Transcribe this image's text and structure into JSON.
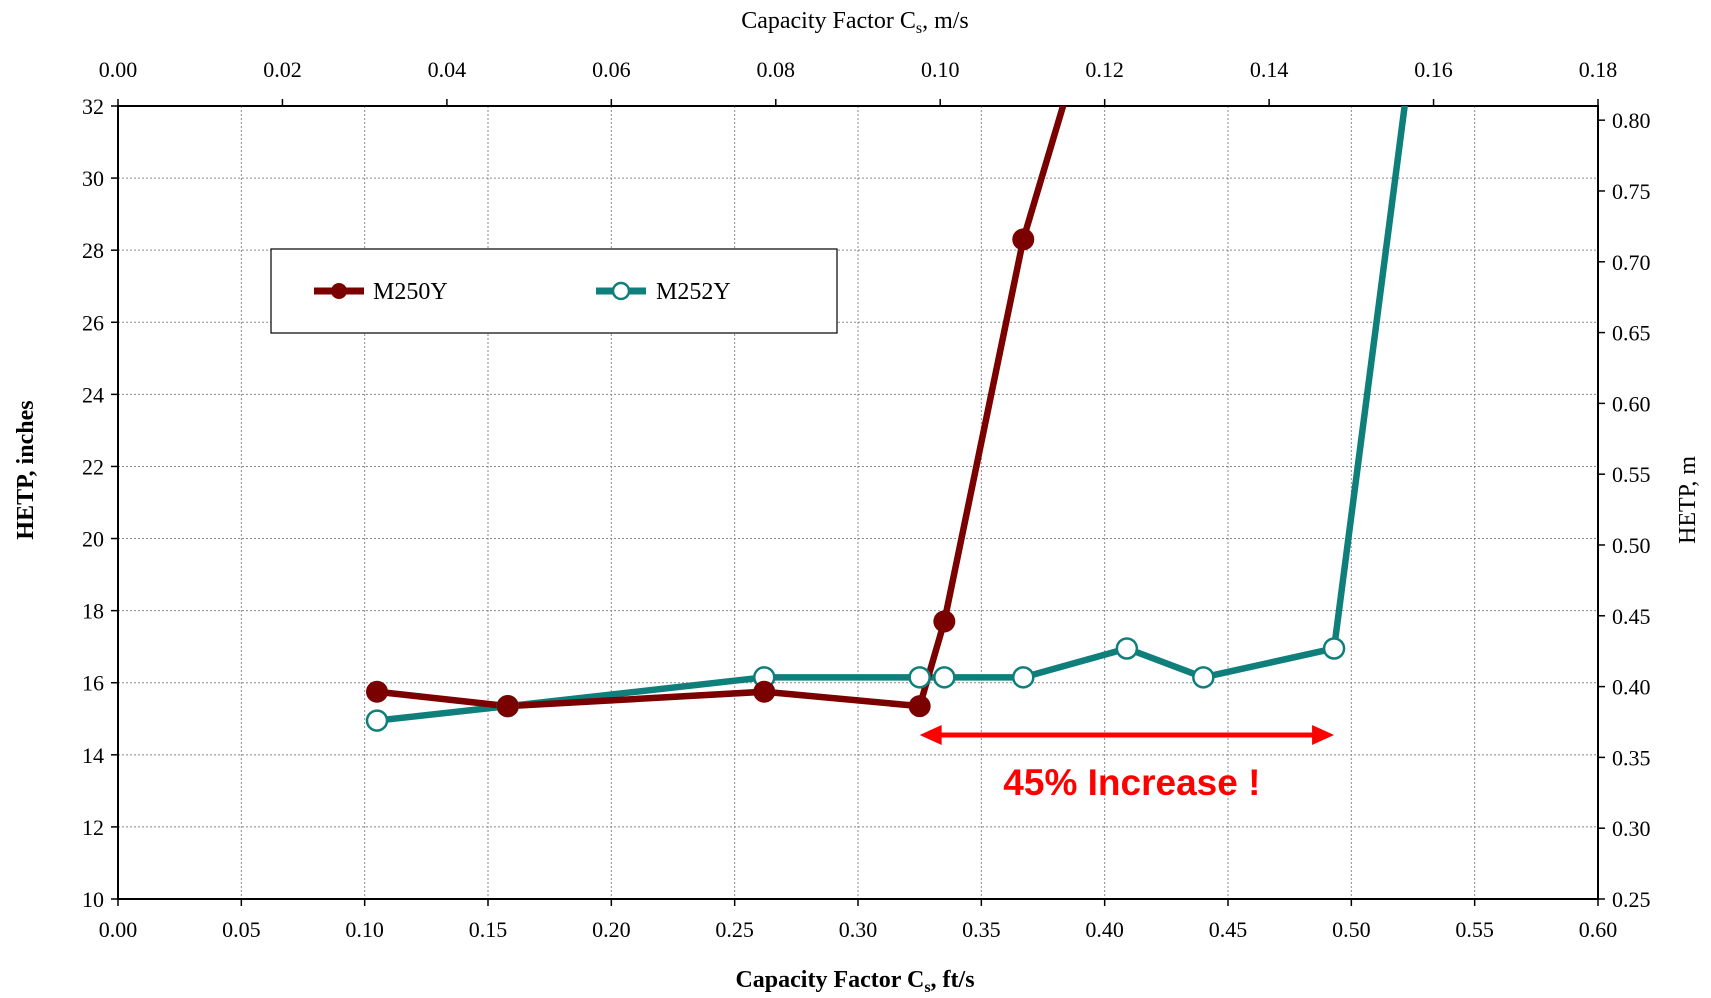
{
  "chart_data": {
    "type": "line",
    "xlabel_bottom": "Capacity Factor C",
    "xlabel_bottom_sub": "s",
    "xlabel_bottom_unit": ", ft/s",
    "xlabel_top": "Capacity Factor C",
    "xlabel_top_sub": "s",
    "xlabel_top_unit": ", m/s",
    "ylabel_left": "HETP, inches",
    "ylabel_right": "HETP, m",
    "xlim_bottom": [
      0,
      0.6
    ],
    "xlim_top": [
      0,
      0.18
    ],
    "ylim_left": [
      10,
      32
    ],
    "ylim_right": [
      0.25,
      0.81
    ],
    "x_ticks_bottom": [
      "0.00",
      "0.05",
      "0.10",
      "0.15",
      "0.20",
      "0.25",
      "0.30",
      "0.35",
      "0.40",
      "0.45",
      "0.50",
      "0.55",
      "0.60"
    ],
    "x_ticks_top": [
      "0.00",
      "0.02",
      "0.04",
      "0.06",
      "0.08",
      "0.10",
      "0.12",
      "0.14",
      "0.16",
      "0.18"
    ],
    "y_ticks_left": [
      "10",
      "12",
      "14",
      "16",
      "18",
      "20",
      "22",
      "24",
      "26",
      "28",
      "30",
      "32"
    ],
    "y_ticks_right": [
      "0.25",
      "0.30",
      "0.35",
      "0.40",
      "0.45",
      "0.50",
      "0.55",
      "0.60",
      "0.65",
      "0.70",
      "0.75",
      "0.80"
    ],
    "grid": true,
    "legend_position": "top-left",
    "series": [
      {
        "name": "M250Y",
        "color": "#7b0000",
        "marker": "filled-circle",
        "x": [
          0.105,
          0.158,
          0.262,
          0.325,
          0.335,
          0.367,
          0.384
        ],
        "y": [
          15.75,
          15.35,
          15.75,
          15.35,
          17.7,
          28.3,
          32.2
        ],
        "marker_points": 6
      },
      {
        "name": "M252Y",
        "color": "#0e7f7b",
        "marker": "open-circle",
        "x": [
          0.105,
          0.158,
          0.262,
          0.325,
          0.335,
          0.367,
          0.409,
          0.44,
          0.493,
          0.522
        ],
        "y": [
          14.95,
          15.35,
          16.15,
          16.15,
          16.15,
          16.15,
          16.95,
          16.15,
          16.95,
          32.2
        ],
        "marker_points": 9
      }
    ],
    "annotation": {
      "text": "45% Increase !",
      "color": "#ff0000",
      "x_start": 0.325,
      "x_end": 0.493,
      "y": 14.55
    }
  }
}
